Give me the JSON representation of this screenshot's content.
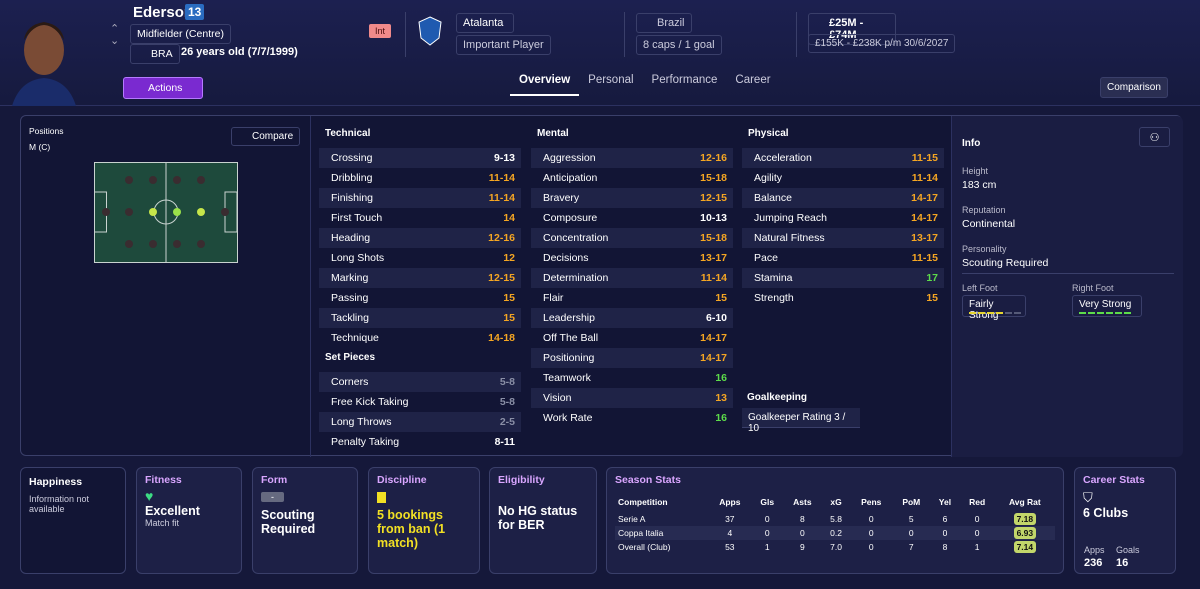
{
  "header": {
    "name": "Ederson",
    "number": "13",
    "position": "Midfielder (Centre)",
    "nation": "BRA",
    "age": "26 years old (7/7/1999)",
    "actions": "Actions",
    "int": "Int",
    "club": "Atalanta",
    "role": "Important Player",
    "country": "Brazil",
    "caps": "8 caps / 1 goal",
    "value": "£25M - £74M",
    "wage": "£155K - £238K p/m",
    "contract": "30/6/2027"
  },
  "tabs": [
    "Overview",
    "Personal",
    "Performance",
    "Career"
  ],
  "comparison": "Comparison",
  "positions": {
    "label": "Positions",
    "value": "M (C)",
    "compare": "Compare"
  },
  "technical": {
    "title": "Technical",
    "attributes": [
      {
        "name": "Crossing",
        "value": "9-13",
        "color": "#ffffff"
      },
      {
        "name": "Dribbling",
        "value": "11-14",
        "color": "#f5a623"
      },
      {
        "name": "Finishing",
        "value": "11-14",
        "color": "#f5a623"
      },
      {
        "name": "First Touch",
        "value": "14",
        "color": "#f5a623"
      },
      {
        "name": "Heading",
        "value": "12-16",
        "color": "#f5a623"
      },
      {
        "name": "Long Shots",
        "value": "12",
        "color": "#f5a623"
      },
      {
        "name": "Marking",
        "value": "12-15",
        "color": "#f5a623"
      },
      {
        "name": "Passing",
        "value": "15",
        "color": "#f5a623"
      },
      {
        "name": "Tackling",
        "value": "15",
        "color": "#f5a623"
      },
      {
        "name": "Technique",
        "value": "14-18",
        "color": "#f5a623"
      }
    ]
  },
  "set_pieces": {
    "title": "Set Pieces",
    "attributes": [
      {
        "name": "Corners",
        "value": "5-8",
        "color": "#8a8fa6"
      },
      {
        "name": "Free Kick Taking",
        "value": "5-8",
        "color": "#8a8fa6"
      },
      {
        "name": "Long Throws",
        "value": "2-5",
        "color": "#8a8fa6"
      },
      {
        "name": "Penalty Taking",
        "value": "8-11",
        "color": "#ffffff"
      }
    ]
  },
  "mental": {
    "title": "Mental",
    "attributes": [
      {
        "name": "Aggression",
        "value": "12-16",
        "color": "#f5a623"
      },
      {
        "name": "Anticipation",
        "value": "15-18",
        "color": "#f5a623"
      },
      {
        "name": "Bravery",
        "value": "12-15",
        "color": "#f5a623"
      },
      {
        "name": "Composure",
        "value": "10-13",
        "color": "#ffffff"
      },
      {
        "name": "Concentration",
        "value": "15-18",
        "color": "#f5a623"
      },
      {
        "name": "Decisions",
        "value": "13-17",
        "color": "#f5a623"
      },
      {
        "name": "Determination",
        "value": "11-14",
        "color": "#f5a623"
      },
      {
        "name": "Flair",
        "value": "15",
        "color": "#f5a623"
      },
      {
        "name": "Leadership",
        "value": "6-10",
        "color": "#ffffff"
      },
      {
        "name": "Off The Ball",
        "value": "14-17",
        "color": "#f5a623"
      },
      {
        "name": "Positioning",
        "value": "14-17",
        "color": "#f5a623"
      },
      {
        "name": "Teamwork",
        "value": "16",
        "color": "#5ddc4a"
      },
      {
        "name": "Vision",
        "value": "13",
        "color": "#f5a623"
      },
      {
        "name": "Work Rate",
        "value": "16",
        "color": "#5ddc4a"
      }
    ]
  },
  "physical": {
    "title": "Physical",
    "attributes": [
      {
        "name": "Acceleration",
        "value": "11-15",
        "color": "#f5a623"
      },
      {
        "name": "Agility",
        "value": "11-14",
        "color": "#f5a623"
      },
      {
        "name": "Balance",
        "value": "14-17",
        "color": "#f5a623"
      },
      {
        "name": "Jumping Reach",
        "value": "14-17",
        "color": "#f5a623"
      },
      {
        "name": "Natural Fitness",
        "value": "13-17",
        "color": "#f5a623"
      },
      {
        "name": "Pace",
        "value": "11-15",
        "color": "#f5a623"
      },
      {
        "name": "Stamina",
        "value": "17",
        "color": "#5ddc4a"
      },
      {
        "name": "Strength",
        "value": "15",
        "color": "#f5a623"
      }
    ]
  },
  "goalkeeping": {
    "title": "Goalkeeping",
    "label": "Goalkeeper Rating",
    "value": "3 / 10"
  },
  "info": {
    "title": "Info",
    "items": [
      {
        "label": "Height",
        "value": "183 cm"
      },
      {
        "label": "Reputation",
        "value": "Continental"
      },
      {
        "label": "Personality",
        "value": "Scouting Required"
      }
    ],
    "left_foot": {
      "label": "Left Foot",
      "value": "Fairly Strong"
    },
    "right_foot": {
      "label": "Right Foot",
      "value": "Very Strong"
    }
  },
  "happiness": {
    "title": "Happiness",
    "text": "Information not available"
  },
  "fitness": {
    "title": "Fitness",
    "value": "Excellent",
    "note": "Match fit"
  },
  "form": {
    "title": "Form",
    "badge": "-",
    "value": "Scouting Required"
  },
  "discipline": {
    "title": "Discipline",
    "value": "5 bookings from ban (1 match)"
  },
  "eligibility": {
    "title": "Eligibility",
    "value": "No HG status for BER"
  },
  "season_stats": {
    "title": "Season Stats",
    "columns": [
      "Competition",
      "Apps",
      "Gls",
      "Asts",
      "xG",
      "Pens",
      "PoM",
      "Yel",
      "Red",
      "Avg Rat"
    ],
    "rows": [
      [
        "Serie A",
        "37",
        "0",
        "8",
        "5.8",
        "0",
        "5",
        "6",
        "0",
        "7.18"
      ],
      [
        "Coppa Italia",
        "4",
        "0",
        "0",
        "0.2",
        "0",
        "0",
        "0",
        "0",
        "6.93"
      ],
      [
        "Overall (Club)",
        "53",
        "1",
        "9",
        "7.0",
        "0",
        "7",
        "8",
        "1",
        "7.14"
      ]
    ]
  },
  "career_stats": {
    "title": "Career Stats",
    "value": "6 Clubs",
    "apps_label": "Apps",
    "apps": "236",
    "goals_label": "Goals",
    "goals": "16"
  }
}
